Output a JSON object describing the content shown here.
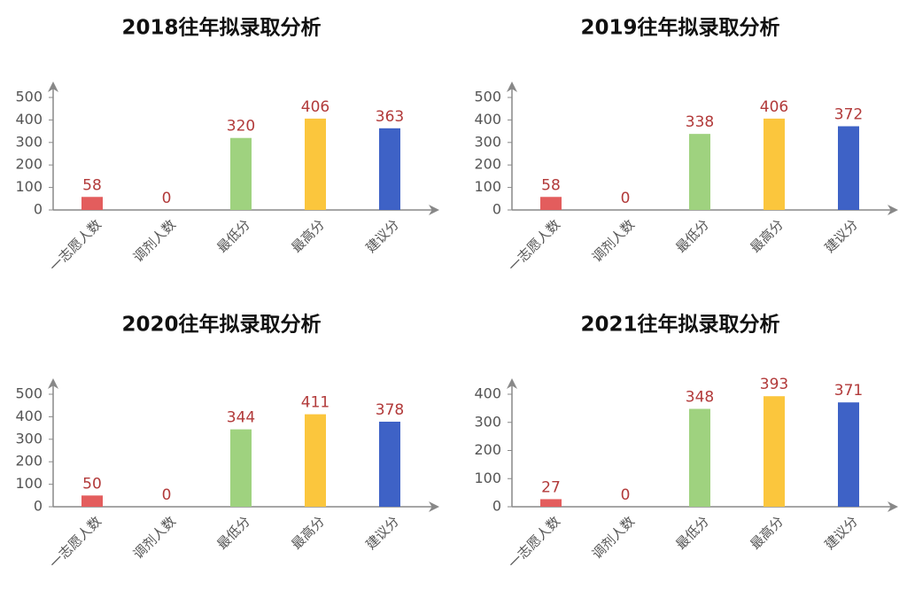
{
  "chart_data": [
    {
      "type": "bar",
      "title": "2018往年拟录取分析",
      "categories": [
        "一志愿人数",
        "调剂人数",
        "最低分",
        "最高分",
        "建议分"
      ],
      "values": [
        58,
        0,
        320,
        406,
        363
      ],
      "colors": [
        "#e35d5d",
        "#e35d5d",
        "#9fd27f",
        "#fbc63d",
        "#3e62c6"
      ],
      "ylim": [
        0,
        500
      ],
      "yticks": [
        0,
        100,
        200,
        300,
        400,
        500
      ]
    },
    {
      "type": "bar",
      "title": "2019往年拟录取分析",
      "categories": [
        "一志愿人数",
        "调剂人数",
        "最低分",
        "最高分",
        "建议分"
      ],
      "values": [
        58,
        0,
        338,
        406,
        372
      ],
      "colors": [
        "#e35d5d",
        "#e35d5d",
        "#9fd27f",
        "#fbc63d",
        "#3e62c6"
      ],
      "ylim": [
        0,
        500
      ],
      "yticks": [
        0,
        100,
        200,
        300,
        400,
        500
      ]
    },
    {
      "type": "bar",
      "title": "2020往年拟录取分析",
      "categories": [
        "一志愿人数",
        "调剂人数",
        "最低分",
        "最高分",
        "建议分"
      ],
      "values": [
        50,
        0,
        344,
        411,
        378
      ],
      "colors": [
        "#e35d5d",
        "#e35d5d",
        "#9fd27f",
        "#fbc63d",
        "#3e62c6"
      ],
      "ylim": [
        0,
        500
      ],
      "yticks": [
        0,
        100,
        200,
        300,
        400,
        500
      ]
    },
    {
      "type": "bar",
      "title": "2021往年拟录取分析",
      "categories": [
        "一志愿人数",
        "调剂人数",
        "最低分",
        "最高分",
        "建议分"
      ],
      "values": [
        27,
        0,
        348,
        393,
        371
      ],
      "colors": [
        "#e35d5d",
        "#e35d5d",
        "#9fd27f",
        "#fbc63d",
        "#3e62c6"
      ],
      "ylim": [
        0,
        400
      ],
      "yticks": [
        0,
        100,
        200,
        300,
        400
      ]
    }
  ]
}
